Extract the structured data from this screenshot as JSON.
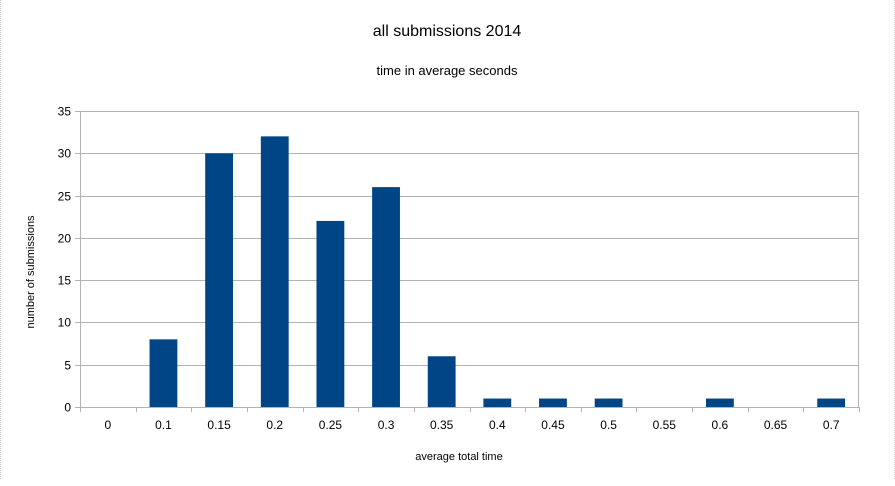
{
  "chart_data": {
    "type": "bar",
    "title": "all submissions 2014",
    "subtitle": "time in average seconds",
    "xlabel": "average total time",
    "ylabel": "number of submissions",
    "categories": [
      "0",
      "0.1",
      "0.15",
      "0.2",
      "0.25",
      "0.3",
      "0.35",
      "0.4",
      "0.45",
      "0.5",
      "0.55",
      "0.6",
      "0.65",
      "0.7"
    ],
    "values": [
      0,
      8,
      30,
      32,
      22,
      26,
      6,
      1,
      1,
      1,
      0,
      1,
      0,
      1
    ],
    "ylim": [
      0,
      35
    ],
    "yticks": [
      "0",
      "5",
      "10",
      "15",
      "20",
      "25",
      "30",
      "35"
    ],
    "grid": true,
    "legend": "none",
    "bar_color": "#004586",
    "grid_color": "#b3b3b3"
  }
}
